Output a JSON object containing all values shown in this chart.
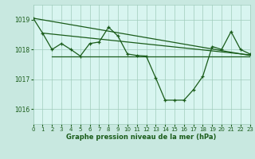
{
  "fig_bg": "#c8e8e0",
  "plot_bg": "#d8f5f0",
  "grid_color": "#a0ccbc",
  "line_color": "#1a5c1a",
  "xlabel": "Graphe pression niveau de la mer (hPa)",
  "xlim": [
    0,
    23
  ],
  "ylim": [
    1015.5,
    1019.5
  ],
  "yticks": [
    1016,
    1017,
    1018,
    1019
  ],
  "xtick_labels": [
    "0",
    "1",
    "2",
    "3",
    "4",
    "5",
    "6",
    "7",
    "8",
    "9",
    "10",
    "11",
    "12",
    "13",
    "14",
    "15",
    "16",
    "17",
    "18",
    "19",
    "20",
    "21",
    "22",
    "23"
  ],
  "trend1_x": [
    0,
    23
  ],
  "trend1_y": [
    1019.05,
    1017.8
  ],
  "trend2_x": [
    1,
    23
  ],
  "trend2_y": [
    1018.55,
    1017.82
  ],
  "trend3_x": [
    2,
    23
  ],
  "trend3_y": [
    1017.78,
    1017.78
  ],
  "main_x": [
    0,
    1,
    2,
    3,
    4,
    5,
    6,
    7,
    8,
    9,
    10,
    11,
    12,
    13,
    14,
    15,
    16,
    17,
    18,
    19,
    20,
    21,
    22,
    23
  ],
  "main_y": [
    1019.05,
    1018.55,
    1018.0,
    1018.2,
    1018.0,
    1017.78,
    1018.2,
    1018.25,
    1018.75,
    1018.45,
    1017.85,
    1017.8,
    1017.78,
    1017.05,
    1016.3,
    1016.3,
    1016.3,
    1016.65,
    1017.1,
    1018.1,
    1018.0,
    1018.6,
    1018.0,
    1017.85
  ]
}
